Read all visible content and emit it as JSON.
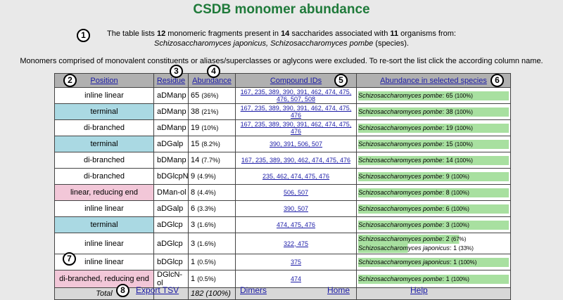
{
  "title": "CSDB monomer abundance",
  "intro": {
    "p1": "The table lists ",
    "fragments": "12",
    "p2": " monomeric fragments present in ",
    "saccharides": "14",
    "p3": " saccharides associated with ",
    "organisms": "11",
    "p4": " organisms from:",
    "species_list": "Schizosaccharomyces japonicus, Schizosaccharomyces pombe",
    "suffix": " (species)."
  },
  "note": "Monomers comprised of monovalent constituents or aliases/superclasses or aglycons were excluded. To re-sort the list click the according column name.",
  "badges": [
    "1",
    "2",
    "3",
    "4",
    "5",
    "6",
    "7",
    "8"
  ],
  "colors": {
    "teal": "#aad9e3",
    "pink": "#f2c7d8",
    "green_bar": "#a8e0a0",
    "link": "#1a1aa6",
    "title": "#1f7a3a"
  },
  "headers": {
    "position": "Position",
    "residue": "Residue",
    "abundance": "Abundance",
    "compound_ids": "Compound IDs",
    "species": "Abundance in selected species"
  },
  "rows": [
    {
      "position": "inline linear",
      "residue": "aDManp",
      "count": "65",
      "pct": "(36%)",
      "ids": "167, 235, 389, 390, 391, 462, 474, 475, 476, 507, 508",
      "color": "#ffffff",
      "species": [
        {
          "name": "Schizosaccharomyces pombe",
          "count": "65",
          "pct": "(100%)",
          "fill": 1.0
        }
      ]
    },
    {
      "position": "terminal",
      "residue": "aDManp",
      "count": "38",
      "pct": "(21%)",
      "ids": "167, 235, 389, 390, 391, 462, 474, 475, 476",
      "color": "#aad9e3",
      "species": [
        {
          "name": "Schizosaccharomyces pombe",
          "count": "38",
          "pct": "(100%)",
          "fill": 1.0
        }
      ]
    },
    {
      "position": "di-branched",
      "residue": "aDManp",
      "count": "19",
      "pct": "(10%)",
      "ids": "167, 235, 389, 390, 391, 462, 474, 475, 476",
      "color": "#ffffff",
      "species": [
        {
          "name": "Schizosaccharomyces pombe",
          "count": "19",
          "pct": "(100%)",
          "fill": 1.0
        }
      ]
    },
    {
      "position": "terminal",
      "residue": "aDGalp",
      "count": "15",
      "pct": "(8.2%)",
      "ids": "390, 391, 506, 507",
      "color": "#aad9e3",
      "species": [
        {
          "name": "Schizosaccharomyces pombe",
          "count": "15",
          "pct": "(100%)",
          "fill": 1.0
        }
      ]
    },
    {
      "position": "di-branched",
      "residue": "bDManp",
      "count": "14",
      "pct": "(7.7%)",
      "ids": "167, 235, 389, 390, 462, 474, 475, 476",
      "color": "#ffffff",
      "species": [
        {
          "name": "Schizosaccharomyces pombe",
          "count": "14",
          "pct": "(100%)",
          "fill": 1.0
        }
      ]
    },
    {
      "position": "di-branched",
      "residue": "bDGlcpN",
      "count": "9",
      "pct": "(4.9%)",
      "ids": "235, 462, 474, 475, 476",
      "color": "#ffffff",
      "species": [
        {
          "name": "Schizosaccharomyces pombe",
          "count": "9",
          "pct": "(100%)",
          "fill": 1.0
        }
      ]
    },
    {
      "position": "linear, reducing end",
      "residue": "DMan-ol",
      "count": "8",
      "pct": "(4.4%)",
      "ids": "506, 507",
      "color": "#f2c7d8",
      "species": [
        {
          "name": "Schizosaccharomyces pombe",
          "count": "8",
          "pct": "(100%)",
          "fill": 1.0
        }
      ]
    },
    {
      "position": "inline linear",
      "residue": "aDGalp",
      "count": "6",
      "pct": "(3.3%)",
      "ids": "390, 507",
      "color": "#ffffff",
      "species": [
        {
          "name": "Schizosaccharomyces pombe",
          "count": "6",
          "pct": "(100%)",
          "fill": 1.0
        }
      ]
    },
    {
      "position": "terminal",
      "residue": "aDGlcp",
      "count": "3",
      "pct": "(1.6%)",
      "ids": "474, 475, 476",
      "color": "#aad9e3",
      "species": [
        {
          "name": "Schizosaccharomyces pombe",
          "count": "3",
          "pct": "(100%)",
          "fill": 1.0
        }
      ]
    },
    {
      "position": "inline linear",
      "residue": "aDGlcp",
      "count": "3",
      "pct": "(1.6%)",
      "ids": "322, 475",
      "color": "#ffffff",
      "species": [
        {
          "name": "Schizosaccharomyces pombe",
          "count": "2",
          "pct": "(67%)",
          "fill": 0.67
        },
        {
          "name": "Schizosaccharomyces japonicus",
          "count": "1",
          "pct": "(33%)",
          "fill": 0.33
        }
      ]
    },
    {
      "position": "inline linear",
      "residue": "bDGlcp",
      "count": "1",
      "pct": "(0.5%)",
      "ids": "375",
      "color": "#ffffff",
      "species": [
        {
          "name": "Schizosaccharomyces japonicus",
          "count": "1",
          "pct": "(100%)",
          "fill": 1.0
        }
      ]
    },
    {
      "position": "di-branched, reducing end",
      "residue": "DGlcN-ol",
      "count": "1",
      "pct": "(0.5%)",
      "ids": "474",
      "color": "#f2c7d8",
      "species": [
        {
          "name": "Schizosaccharomyces pombe",
          "count": "1",
          "pct": "(100%)",
          "fill": 1.0
        }
      ]
    }
  ],
  "total": {
    "label": "Total",
    "count": "182",
    "pct": "(100%)"
  },
  "footer": {
    "export": "Export TSV",
    "dimers": "Dimers",
    "home": "Home",
    "help": "Help"
  }
}
